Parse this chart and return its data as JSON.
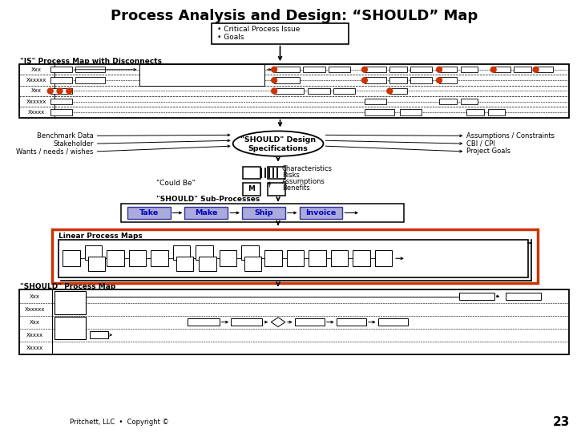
{
  "title": "Process Analysis and Design: “SHOULD” Map",
  "title_fontsize": 13,
  "bg_color": "#ffffff",
  "box_top_text": [
    "• Critical Process Issue",
    "• Goals"
  ],
  "is_map_label": "\"IS\" Process Map with Disconnects",
  "is_map_rows": [
    "Xxx",
    "Xxxxxx",
    "Xxx",
    "Xxxxxx",
    "Xxxxx"
  ],
  "left_inputs": [
    "Benchmark Data",
    "Stakeholder",
    "Wants / needs / wishes"
  ],
  "right_inputs": [
    "Assumptions / Constraints",
    "CBI / CPI",
    "Project Goals"
  ],
  "should_design_label1": "\"SHOULD\" Design",
  "should_design_label2": "Specifications",
  "could_be_label": "\"Could Be\"",
  "could_be_items": [
    "Characteristics",
    "Risks",
    "Assumptions",
    "Benefits"
  ],
  "sub_process_label": "\"SHOULD\" Sub-Processes",
  "sub_processes": [
    "Take",
    "Make",
    "Ship",
    "Invoice"
  ],
  "linear_label": "Linear Process Maps",
  "should_process_label": "\"SHOULD\" Process Map",
  "should_process_rows": [
    "Xxx",
    "Xxxxxx",
    "Xxx",
    "Xxxxx",
    "Xxxxx"
  ],
  "footer": "Pritchett, LLC  •  Copyright ©",
  "page_num": "23",
  "red_orange": "#cc3300",
  "blue_text": "#0000bb",
  "light_blue_fill": "#aaaadd"
}
